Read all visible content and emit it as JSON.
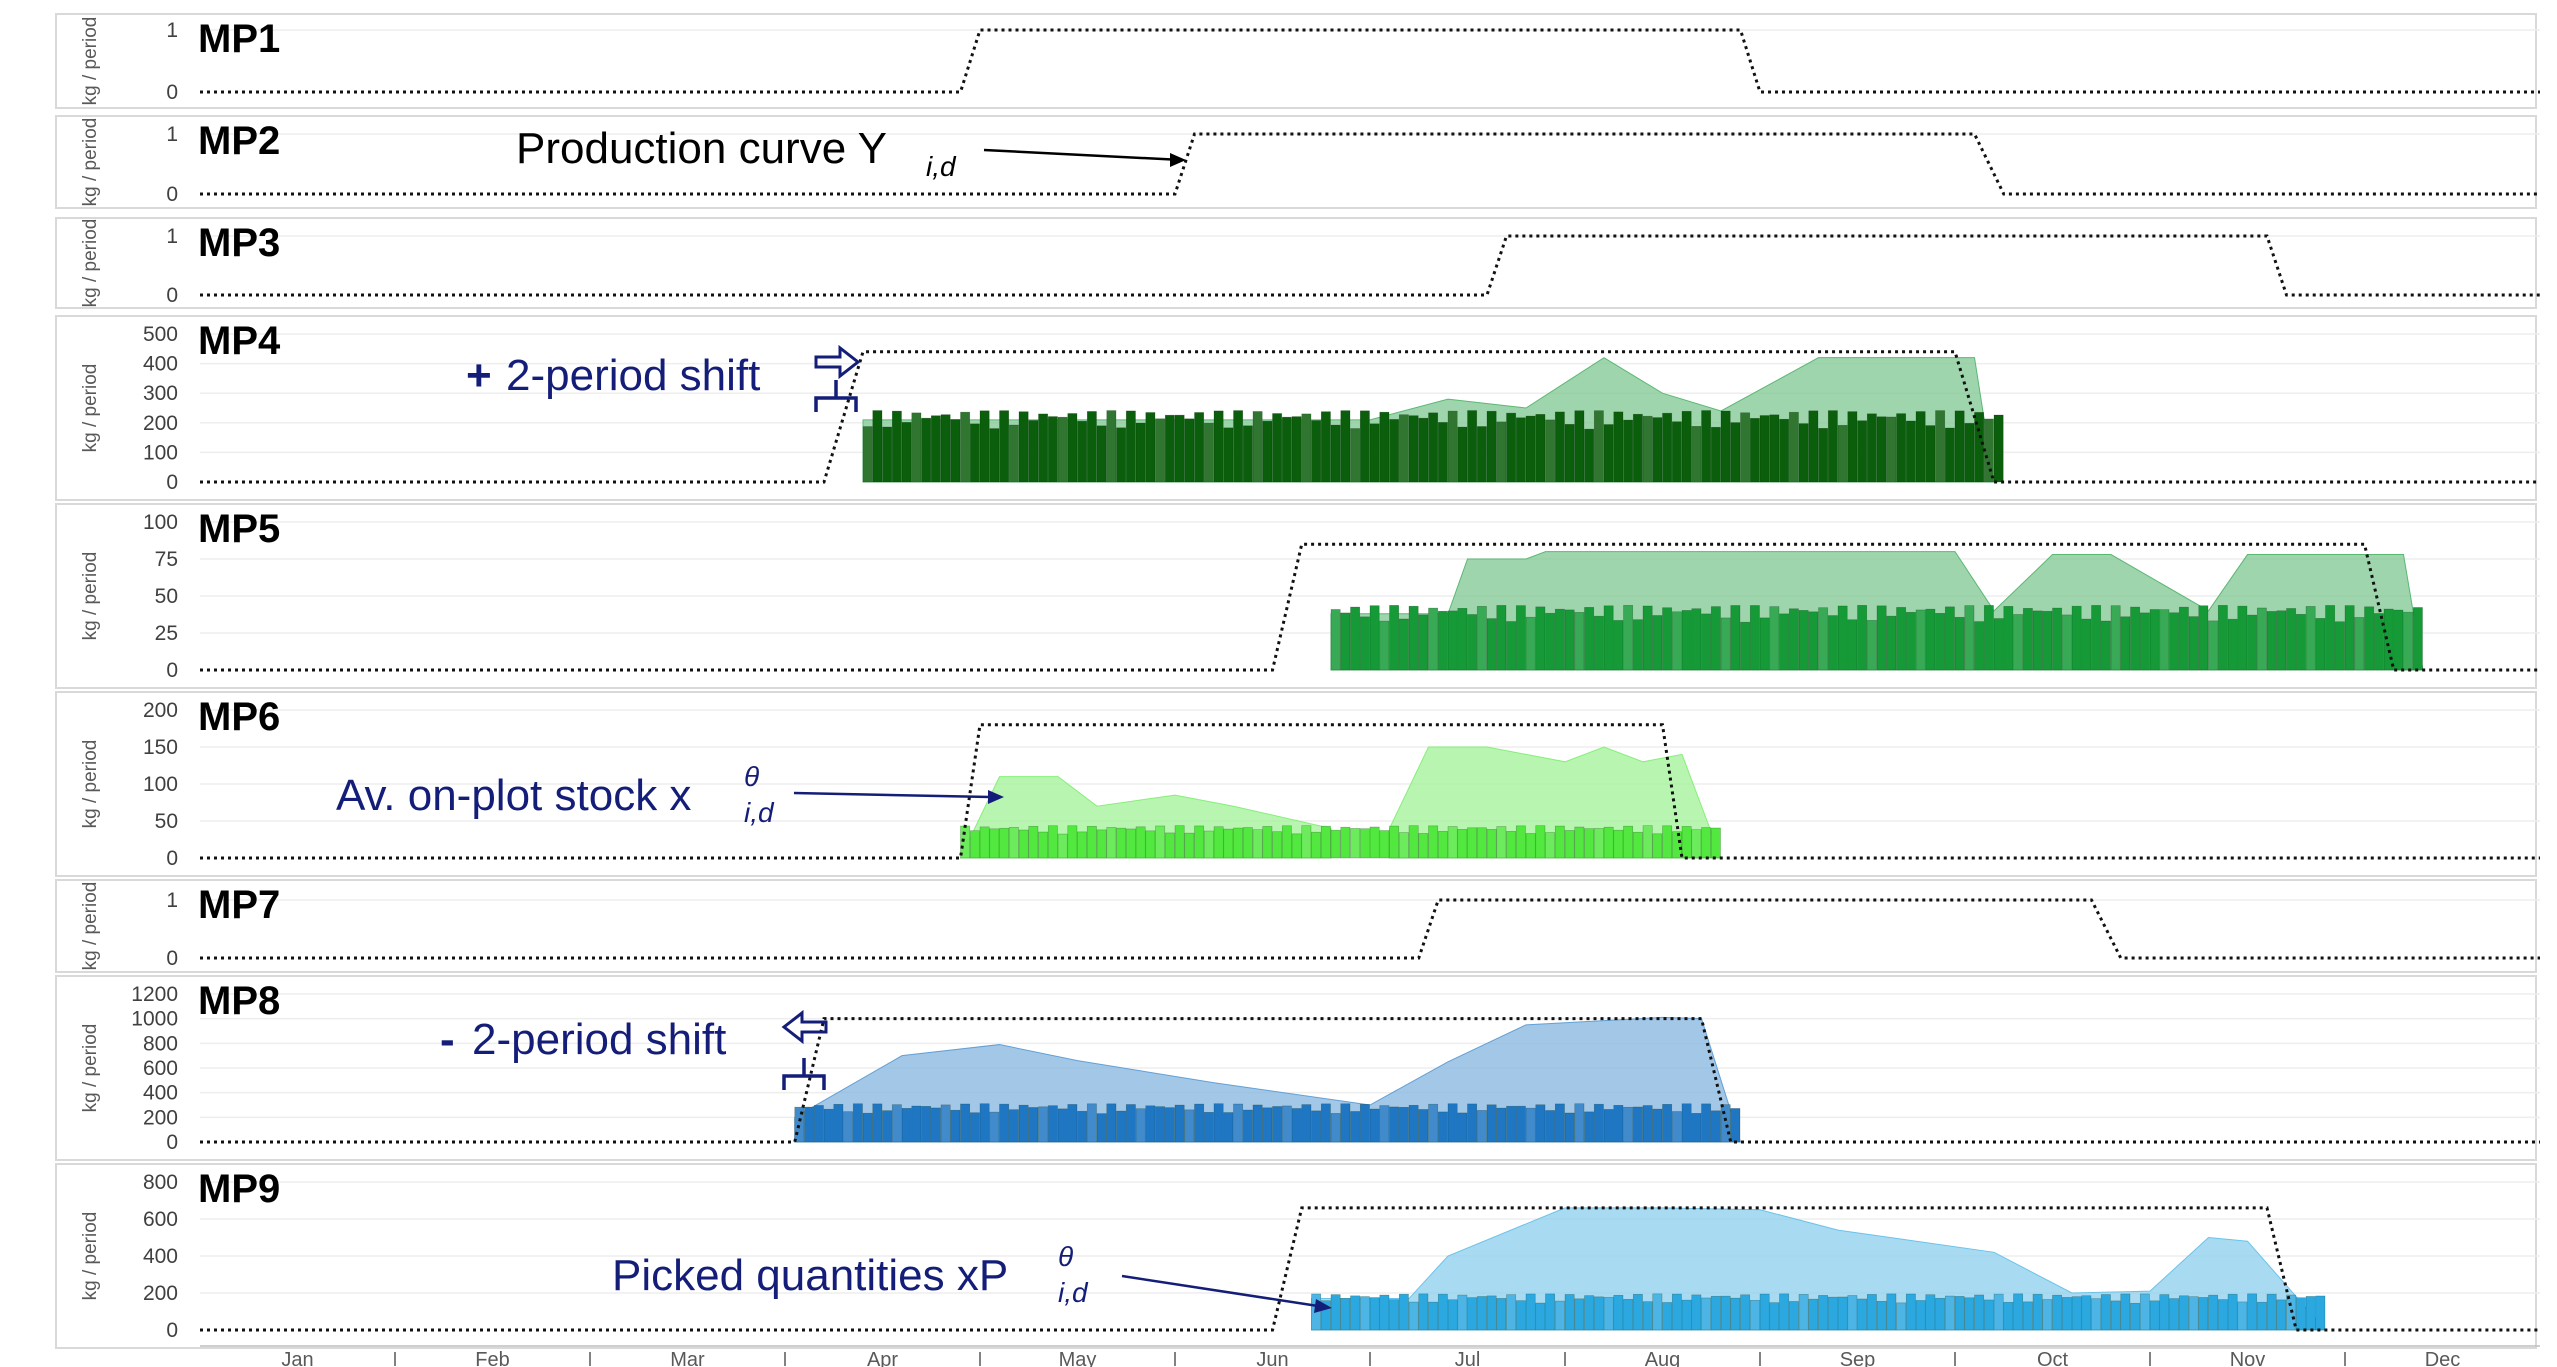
{
  "months": [
    "Jan",
    "Feb",
    "Mar",
    "Apr",
    "May",
    "Jun",
    "Jul",
    "Aug",
    "Sep",
    "Oct",
    "Nov",
    "Dec"
  ],
  "colors": {
    "dark_green": "#0b5e0b",
    "mid_green": "#159a37",
    "light_green": "#52e83f",
    "dark_blue": "#1f77c4",
    "light_blue": "#2ca8e0",
    "annotation_navy": "#141e78"
  },
  "annotations": {
    "production_curve": "Production curve Y",
    "production_curve_sub": "i,d",
    "shift_plus_sign": "+",
    "shift_plus_text": "2-period shift",
    "shift_minus_sign": "-",
    "shift_minus_text": "2-period shift",
    "stock": "Av. on-plot stock x",
    "stock_sub": "i,d",
    "stock_sup": "θ",
    "picked": "Picked quantities xP",
    "picked_sub": "i,d",
    "picked_sup": "θ"
  },
  "chart_data": [
    {
      "type": "area",
      "name": "MP1",
      "ylabel": "kg / period",
      "yticks": [
        0,
        1
      ],
      "ylim": [
        0,
        1
      ],
      "production_curve": {
        "x": [
          0,
          3.9,
          4.0,
          7.9,
          8.0,
          12
        ],
        "y": [
          0,
          0,
          1,
          1,
          0,
          0
        ]
      },
      "picked": [],
      "stock": []
    },
    {
      "type": "area",
      "name": "MP2",
      "ylabel": "kg / period",
      "yticks": [
        0,
        1
      ],
      "ylim": [
        0,
        1
      ],
      "production_curve": {
        "x": [
          0,
          5.0,
          5.1,
          9.1,
          9.25,
          12
        ],
        "y": [
          0,
          0,
          1,
          1,
          0,
          0
        ]
      },
      "picked": [],
      "stock": []
    },
    {
      "type": "area",
      "name": "MP3",
      "ylabel": "kg / period",
      "yticks": [
        0,
        1
      ],
      "ylim": [
        0,
        1
      ],
      "production_curve": {
        "x": [
          0,
          6.6,
          6.7,
          10.6,
          10.7,
          12
        ],
        "y": [
          0,
          0,
          1,
          1,
          0,
          0
        ]
      },
      "picked": [],
      "stock": []
    },
    {
      "type": "area",
      "name": "MP4",
      "ylabel": "kg / period",
      "yticks": [
        0,
        100,
        200,
        300,
        400,
        500
      ],
      "ylim": [
        0,
        500
      ],
      "production_curve": {
        "x": [
          0,
          3.2,
          3.4,
          9.0,
          9.2,
          12
        ],
        "y": [
          0,
          0,
          440,
          440,
          0,
          0
        ]
      },
      "picked": [
        {
          "start": 3.4,
          "end": 9.25,
          "level": 210,
          "color": "dark_green"
        }
      ],
      "stock": [
        {
          "x": [
            3.4,
            6.0,
            6.4,
            6.8,
            7.2,
            7.5,
            7.8,
            8.3,
            8.5,
            9.1,
            9.2
          ],
          "y": [
            210,
            210,
            280,
            250,
            420,
            300,
            240,
            420,
            420,
            420,
            0
          ],
          "color": "mid_green"
        }
      ]
    },
    {
      "type": "area",
      "name": "MP5",
      "ylabel": "kg / period",
      "yticks": [
        0,
        25,
        50,
        75,
        100
      ],
      "ylim": [
        0,
        100
      ],
      "production_curve": {
        "x": [
          0,
          5.5,
          5.65,
          11.1,
          11.25,
          12
        ],
        "y": [
          0,
          0,
          85,
          85,
          0,
          0
        ]
      },
      "picked": [
        {
          "start": 5.8,
          "end": 11.4,
          "level": 38,
          "color": "mid_green"
        }
      ],
      "stock": [
        {
          "x": [
            5.8,
            6.4,
            6.5,
            6.8,
            6.9,
            9.0,
            9.2,
            9.5,
            9.8,
            10.3,
            10.5,
            11.3,
            11.4
          ],
          "y": [
            38,
            38,
            75,
            75,
            80,
            80,
            40,
            78,
            78,
            40,
            78,
            78,
            0
          ],
          "color": "mid_green"
        }
      ]
    },
    {
      "type": "area",
      "name": "MP6",
      "ylabel": "kg / period",
      "yticks": [
        0,
        50,
        100,
        150,
        200
      ],
      "ylim": [
        0,
        200
      ],
      "production_curve": {
        "x": [
          0,
          3.9,
          4.0,
          7.5,
          7.6,
          12
        ],
        "y": [
          0,
          0,
          180,
          180,
          0,
          0
        ]
      },
      "picked": [
        {
          "start": 3.9,
          "end": 7.8,
          "level": 38,
          "color": "light_green"
        }
      ],
      "stock": [
        {
          "x": [
            3.9,
            4.1,
            4.4,
            4.6,
            5.0,
            5.3,
            5.8
          ],
          "y": [
            0,
            110,
            110,
            70,
            85,
            70,
            40
          ],
          "color": "light_green"
        },
        {
          "x": [
            6.1,
            6.3,
            6.6,
            7.0,
            7.2,
            7.4,
            7.6,
            7.8
          ],
          "y": [
            40,
            150,
            150,
            130,
            150,
            130,
            140,
            0
          ],
          "color": "light_green"
        }
      ]
    },
    {
      "type": "area",
      "name": "MP7",
      "ylabel": "kg / period",
      "yticks": [
        0,
        1
      ],
      "ylim": [
        0,
        1
      ],
      "production_curve": {
        "x": [
          0,
          6.25,
          6.35,
          9.7,
          9.85,
          12
        ],
        "y": [
          0,
          0,
          1,
          1,
          0,
          0
        ]
      },
      "picked": [],
      "stock": []
    },
    {
      "type": "area",
      "name": "MP8",
      "ylabel": "kg / period",
      "yticks": [
        0,
        200,
        400,
        600,
        800,
        1000,
        1200
      ],
      "ylim": [
        0,
        1200
      ],
      "production_curve": {
        "x": [
          0,
          3.05,
          3.2,
          7.7,
          7.85,
          12
        ],
        "y": [
          0,
          0,
          1000,
          1000,
          0,
          0
        ]
      },
      "picked": [
        {
          "start": 3.05,
          "end": 7.9,
          "level": 270,
          "color": "dark_blue"
        }
      ],
      "stock": [
        {
          "x": [
            3.05,
            3.6,
            4.1,
            4.5,
            5.2,
            6.0,
            6.4,
            6.8,
            7.5,
            7.7,
            7.9
          ],
          "y": [
            200,
            700,
            790,
            660,
            480,
            300,
            650,
            950,
            1010,
            1000,
            0
          ],
          "color": "dark_blue"
        }
      ]
    },
    {
      "type": "area",
      "name": "MP9",
      "ylabel": "kg / period",
      "yticks": [
        0,
        200,
        400,
        600,
        800
      ],
      "ylim": [
        0,
        800
      ],
      "production_curve": {
        "x": [
          0,
          5.5,
          5.65,
          10.6,
          10.75,
          12
        ],
        "y": [
          0,
          0,
          660,
          660,
          0,
          0
        ]
      },
      "picked": [
        {
          "start": 5.7,
          "end": 10.9,
          "level": 170,
          "color": "light_blue"
        }
      ],
      "stock": [
        {
          "x": [
            5.7,
            6.1,
            6.2,
            6.4,
            7.0,
            7.5,
            8.0,
            8.4,
            9.2,
            9.6,
            10.0,
            10.3,
            10.5,
            10.9
          ],
          "y": [
            170,
            170,
            170,
            400,
            660,
            660,
            650,
            540,
            420,
            200,
            210,
            500,
            480,
            0
          ],
          "color": "light_blue"
        }
      ]
    }
  ]
}
